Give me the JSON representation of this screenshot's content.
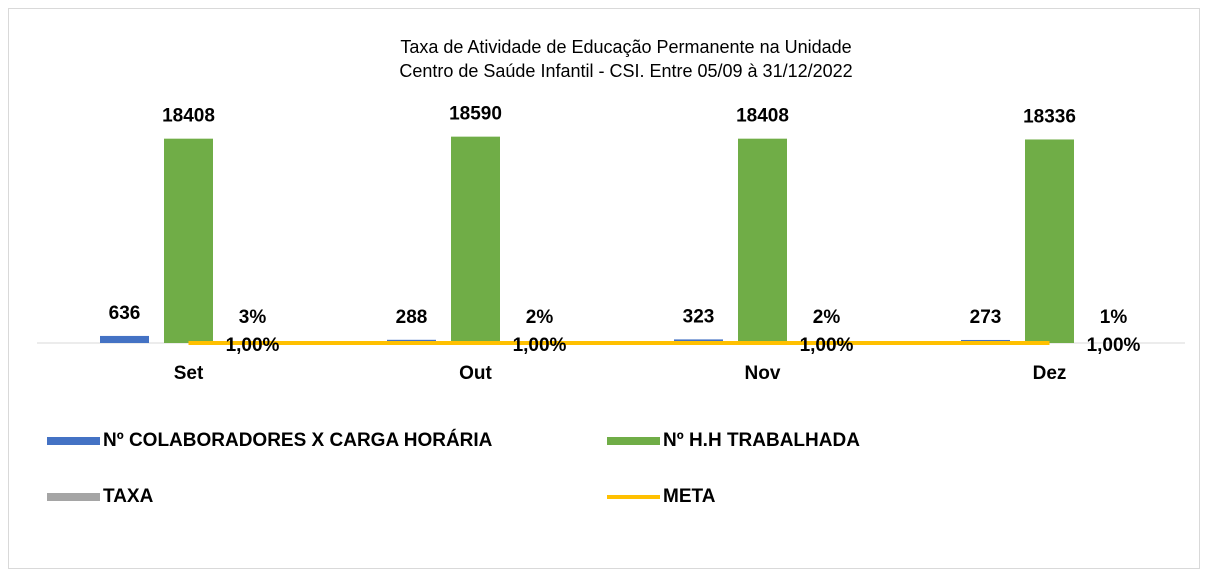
{
  "chart_data": {
    "type": "bar",
    "title": [
      "Taxa de Atividade de Educação Permanente na Unidade",
      "Centro de Saúde Infantil - CSI. Entre 05/09 à 31/12/2022"
    ],
    "categories": [
      "Set",
      "Out",
      "Nov",
      "Dez"
    ],
    "ylim": [
      0,
      20000
    ],
    "legend": "bottom",
    "series": [
      {
        "name": "Nº COLABORADORES X CARGA HORÁRIA",
        "type": "bar",
        "color": "#4472c4",
        "values": [
          636,
          288,
          323,
          273
        ]
      },
      {
        "name": "Nº H.H TRABALHADA",
        "type": "bar",
        "color": "#70ad47",
        "values": [
          18408,
          18590,
          18408,
          18336
        ]
      },
      {
        "name": "TAXA",
        "type": "bar",
        "color": "#a5a5a5",
        "values": [
          3,
          2,
          2,
          1
        ],
        "value_labels": [
          "3%",
          "2%",
          "2%",
          "1%"
        ]
      },
      {
        "name": "META",
        "type": "line",
        "color": "#ffc000",
        "values": [
          1,
          1,
          1,
          1
        ],
        "value_labels": [
          "1,00%",
          "1,00%",
          "1,00%",
          "1,00%"
        ]
      }
    ]
  }
}
